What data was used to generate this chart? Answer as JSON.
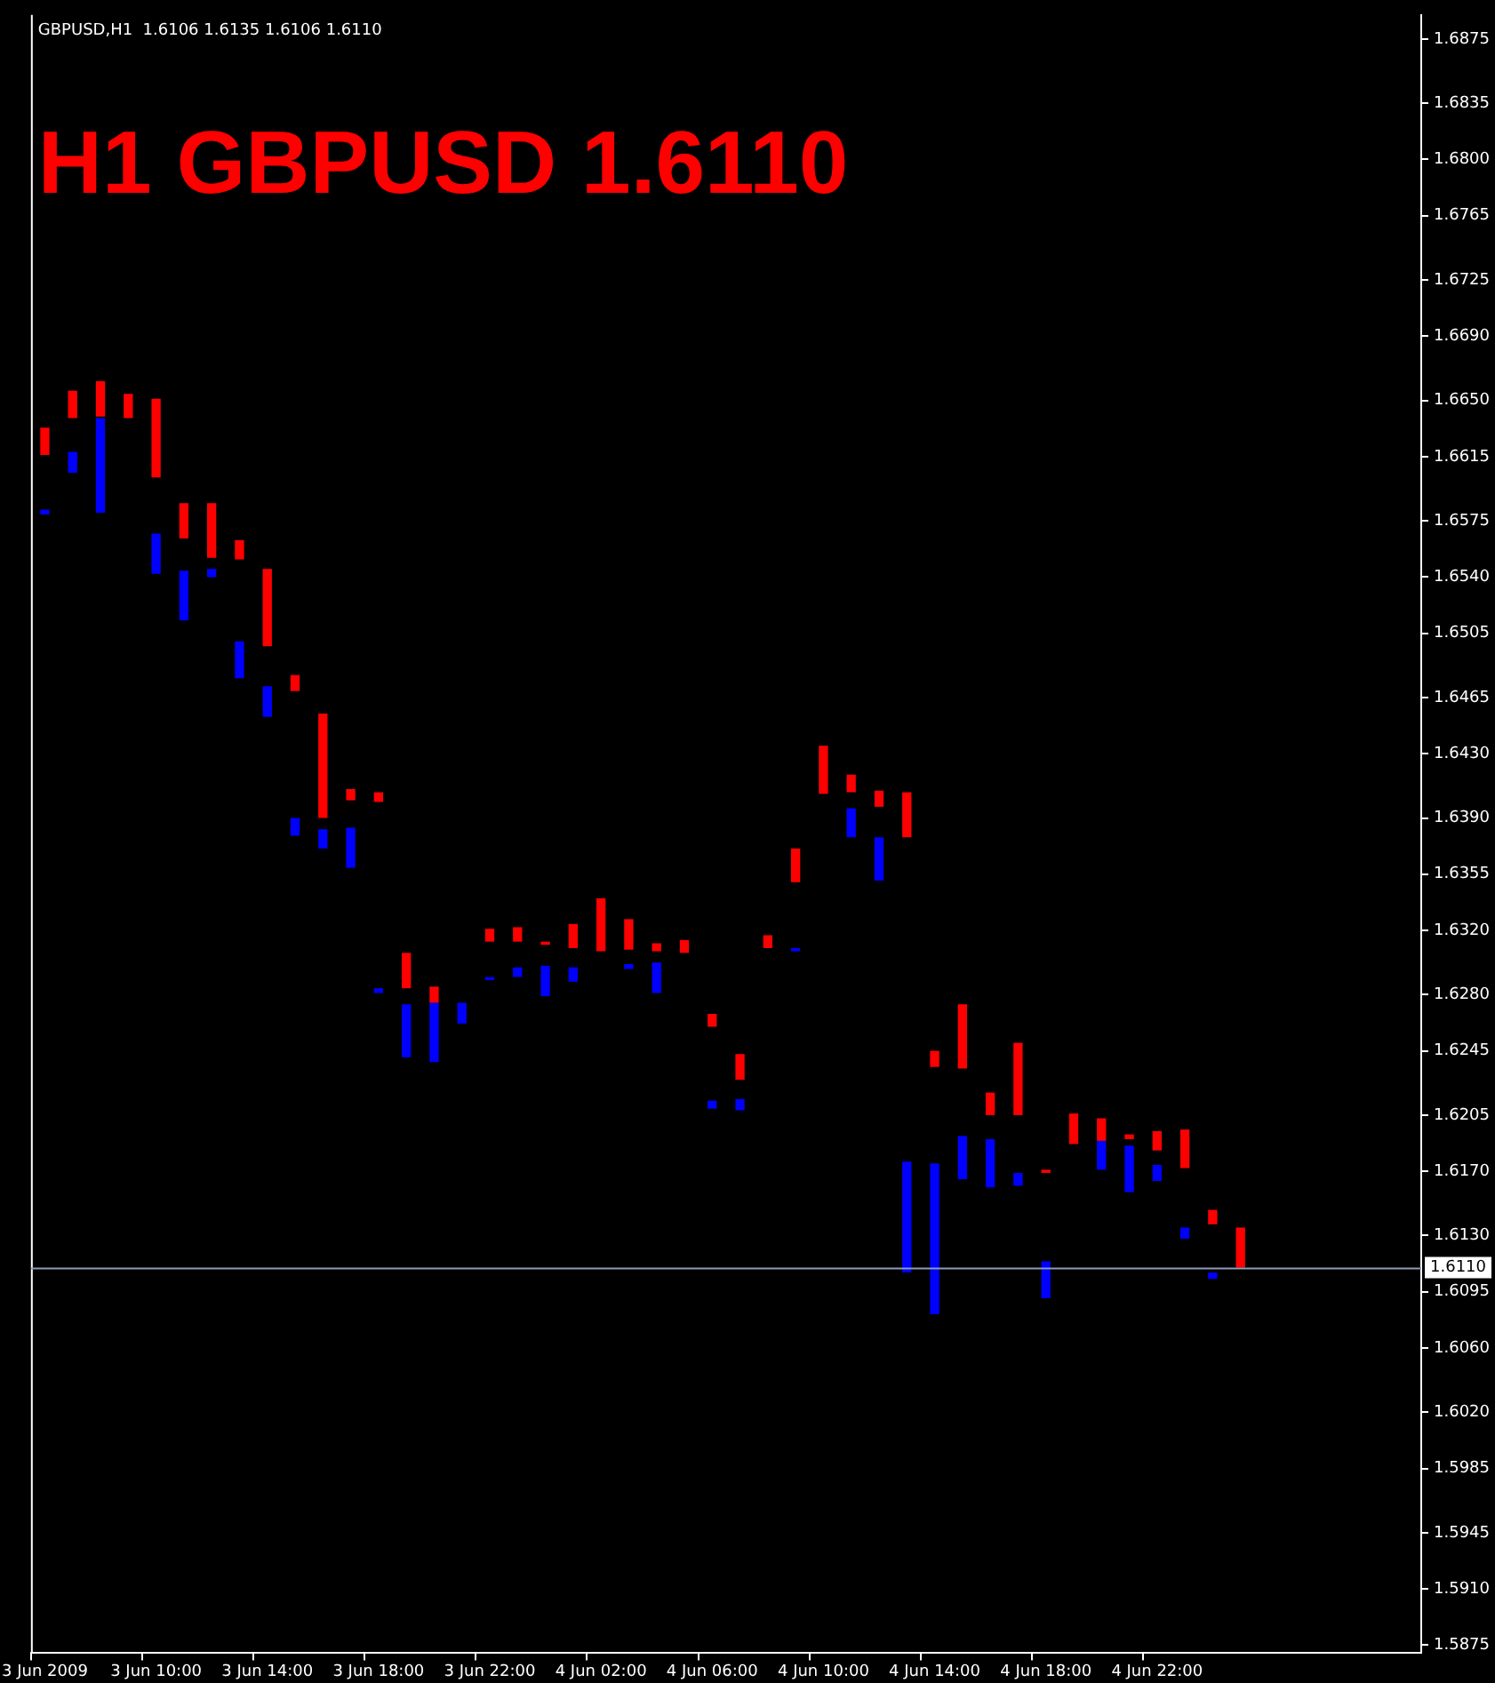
{
  "chart_data": {
    "type": "bar",
    "title": "H1 GBPUSD 1.6110",
    "subtitle": "GBPUSD,H1  1.6106 1.6135 1.6106 1.6110",
    "categories": [
      "3 Jun 2009",
      null,
      null,
      null,
      "3 Jun 10:00",
      null,
      null,
      null,
      "3 Jun 14:00",
      null,
      null,
      null,
      "3 Jun 18:00",
      null,
      null,
      null,
      "3 Jun 22:00",
      null,
      null,
      null,
      "4 Jun 02:00",
      null,
      null,
      null,
      "4 Jun 06:00",
      null,
      null,
      null,
      "4 Jun 10:00",
      null,
      null,
      null,
      "4 Jun 14:00",
      null,
      null,
      null,
      "4 Jun 18:00",
      null,
      null,
      null,
      "4 Jun 22:00",
      null,
      null,
      null,
      null,
      null,
      null,
      null,
      null,
      null
    ],
    "series": [
      {
        "color": "#ff0000",
        "base": [
          1.6616,
          1.6639,
          1.664,
          1.6639,
          1.6602,
          1.6564,
          1.6552,
          1.6551,
          1.6497,
          1.6469,
          1.639,
          1.6401,
          1.64,
          1.6284,
          1.6275,
          null,
          1.6313,
          1.6313,
          1.6311,
          1.6309,
          1.6307,
          1.6308,
          1.6307,
          1.6306,
          1.626,
          1.6227,
          1.6309,
          1.635,
          1.6405,
          1.6406,
          1.6397,
          1.6378,
          1.6235,
          1.6234,
          1.6205,
          1.6205,
          1.6169,
          1.6187,
          1.6189,
          1.619,
          1.6183,
          1.6172,
          1.6137,
          1.611,
          null,
          null,
          null,
          null,
          null,
          null
        ],
        "values": [
          0.0017,
          0.0017,
          0.0022,
          0.0015,
          0.0049,
          0.0022,
          0.0034,
          0.0012,
          0.0048,
          0.001,
          0.0065,
          0.0007,
          0.0006,
          0.0022,
          0.001,
          null,
          0.0008,
          0.0009,
          0.0002,
          0.0015,
          0.0033,
          0.0019,
          0.0005,
          0.0008,
          0.0008,
          0.0016,
          0.0008,
          0.0021,
          0.003,
          0.0011,
          0.001,
          0.0028,
          0.001,
          0.004,
          0.0014,
          0.0045,
          0.0002,
          0.0019,
          0.0014,
          0.0003,
          0.0012,
          0.0024,
          0.0009,
          0.0025,
          null,
          null,
          null,
          null,
          null,
          null
        ]
      },
      {
        "color": "#0000ff",
        "base": [
          1.6579,
          1.6605,
          1.658,
          null,
          1.6542,
          1.6513,
          1.654,
          1.6477,
          1.6453,
          1.6379,
          1.6371,
          1.6359,
          1.6281,
          1.6241,
          1.6238,
          1.6262,
          1.6289,
          1.6291,
          1.6279,
          1.6288,
          null,
          1.6296,
          1.6281,
          null,
          1.6209,
          1.6208,
          null,
          1.6307,
          null,
          1.6378,
          1.6351,
          1.6107,
          1.6081,
          1.6165,
          1.616,
          1.6161,
          1.6091,
          null,
          1.6171,
          1.6157,
          1.6164,
          1.6128,
          1.6103,
          null,
          null,
          null,
          null,
          null,
          null,
          null
        ],
        "values": [
          0.0003,
          0.0013,
          0.0059,
          null,
          0.0025,
          0.0031,
          0.0005,
          0.0023,
          0.0019,
          0.0011,
          0.0012,
          0.0025,
          0.0003,
          0.0033,
          0.0037,
          0.0013,
          0.0002,
          0.0006,
          0.0019,
          0.0009,
          null,
          0.0003,
          0.0019,
          null,
          0.0005,
          0.0007,
          null,
          0.0002,
          null,
          0.0018,
          0.0027,
          0.0069,
          0.0094,
          0.0027,
          0.003,
          0.0008,
          0.0023,
          null,
          0.0018,
          0.0029,
          0.001,
          0.0007,
          0.0004,
          null,
          null,
          null,
          null,
          null,
          null,
          null
        ]
      }
    ],
    "ylim": [
      1.587,
      1.689
    ],
    "yticks": [
      1.6875,
      1.6835,
      {
        "value": 1.68,
        "label": "1.6800"
      },
      1.6765,
      1.6725,
      {
        "value": 1.669,
        "label": "1.6690"
      },
      {
        "value": 1.665,
        "label": "1.6650"
      },
      1.6615,
      1.6575,
      {
        "value": 1.654,
        "label": "1.6540"
      },
      1.6505,
      1.6465,
      {
        "value": 1.643,
        "label": "1.6430"
      },
      {
        "value": 1.639,
        "label": "1.6390"
      },
      1.6355,
      {
        "value": 1.632,
        "label": "1.6320"
      },
      {
        "value": 1.628,
        "label": "1.6280"
      },
      1.6245,
      1.6205,
      {
        "value": 1.617,
        "label": "1.6170"
      },
      {
        "value": 1.613,
        "label": "1.6130"
      },
      1.6095,
      {
        "value": 1.606,
        "label": "1.6060"
      },
      {
        "value": 1.602,
        "label": "1.6020"
      },
      1.5985,
      1.5945,
      {
        "value": 1.591,
        "label": "1.5910"
      },
      1.5875
    ],
    "ref_lines": [
      {
        "axis": "y",
        "value": 1.611,
        "label": "1.6110",
        "color": "#8c9bb4"
      }
    ],
    "grid": false,
    "legend": false
  }
}
